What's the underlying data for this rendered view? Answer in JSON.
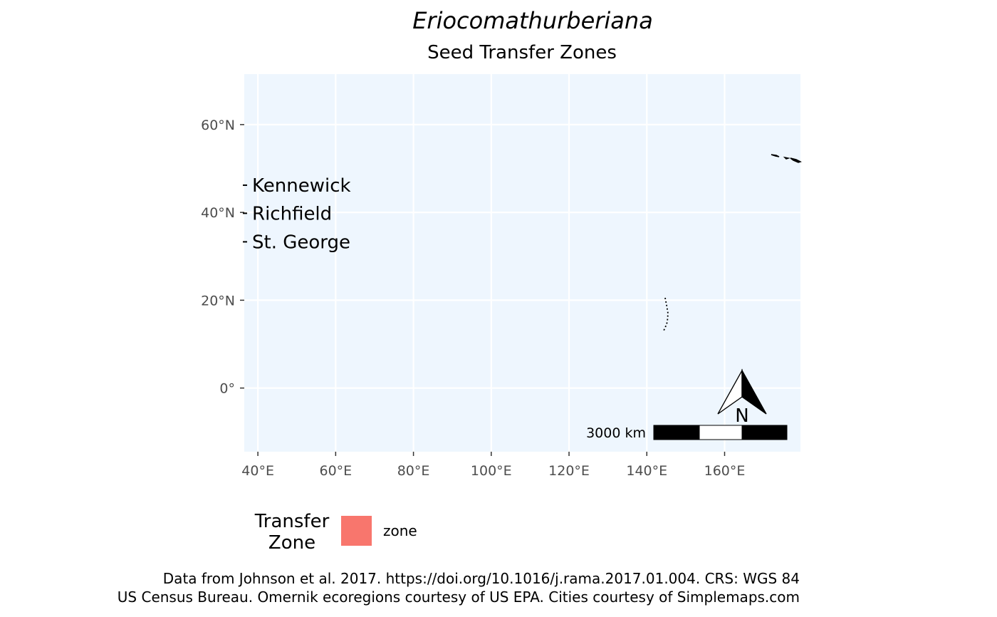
{
  "chart_data": {
    "type": "map",
    "title": {
      "genus": "Eriocoma",
      "species": "thurberiana"
    },
    "subtitle": "Seed Transfer Zones",
    "x_ticks": [
      "40°E",
      "60°E",
      "80°E",
      "100°E",
      "120°E",
      "140°E",
      "160°E"
    ],
    "x_tick_values": [
      40,
      60,
      80,
      100,
      120,
      140,
      160
    ],
    "y_ticks": [
      "60°N",
      "40°N",
      "20°N",
      "0°"
    ],
    "y_tick_values": [
      60,
      40,
      20,
      0
    ],
    "xlim": [
      36.5,
      179.5
    ],
    "ylim": [
      -14.5,
      71.5
    ],
    "grid": true,
    "panel_color": "#EEF6FE",
    "cities": [
      {
        "name": "Kennewick",
        "lat": 46.2
      },
      {
        "name": "Richfield",
        "lat": 39.8
      },
      {
        "name": "St. George",
        "lat": 33.3
      }
    ],
    "scale_bar": {
      "label": "3000 km"
    },
    "north_arrow": {
      "label": "N"
    },
    "legend": {
      "title_line1": "Transfer",
      "title_line2": "Zone",
      "placement": "bottom",
      "entries": [
        {
          "label": "zone",
          "color": "#F8766D"
        }
      ]
    },
    "caption": [
      "Data from Johnson et al. 2017. https://doi.org/10.1016/j.rama.2017.01.004. CRS: WGS 84",
      "US Census Bureau. Omernik ecoregions courtesy of US EPA. Cities courtesy of Simplemaps.com"
    ]
  }
}
